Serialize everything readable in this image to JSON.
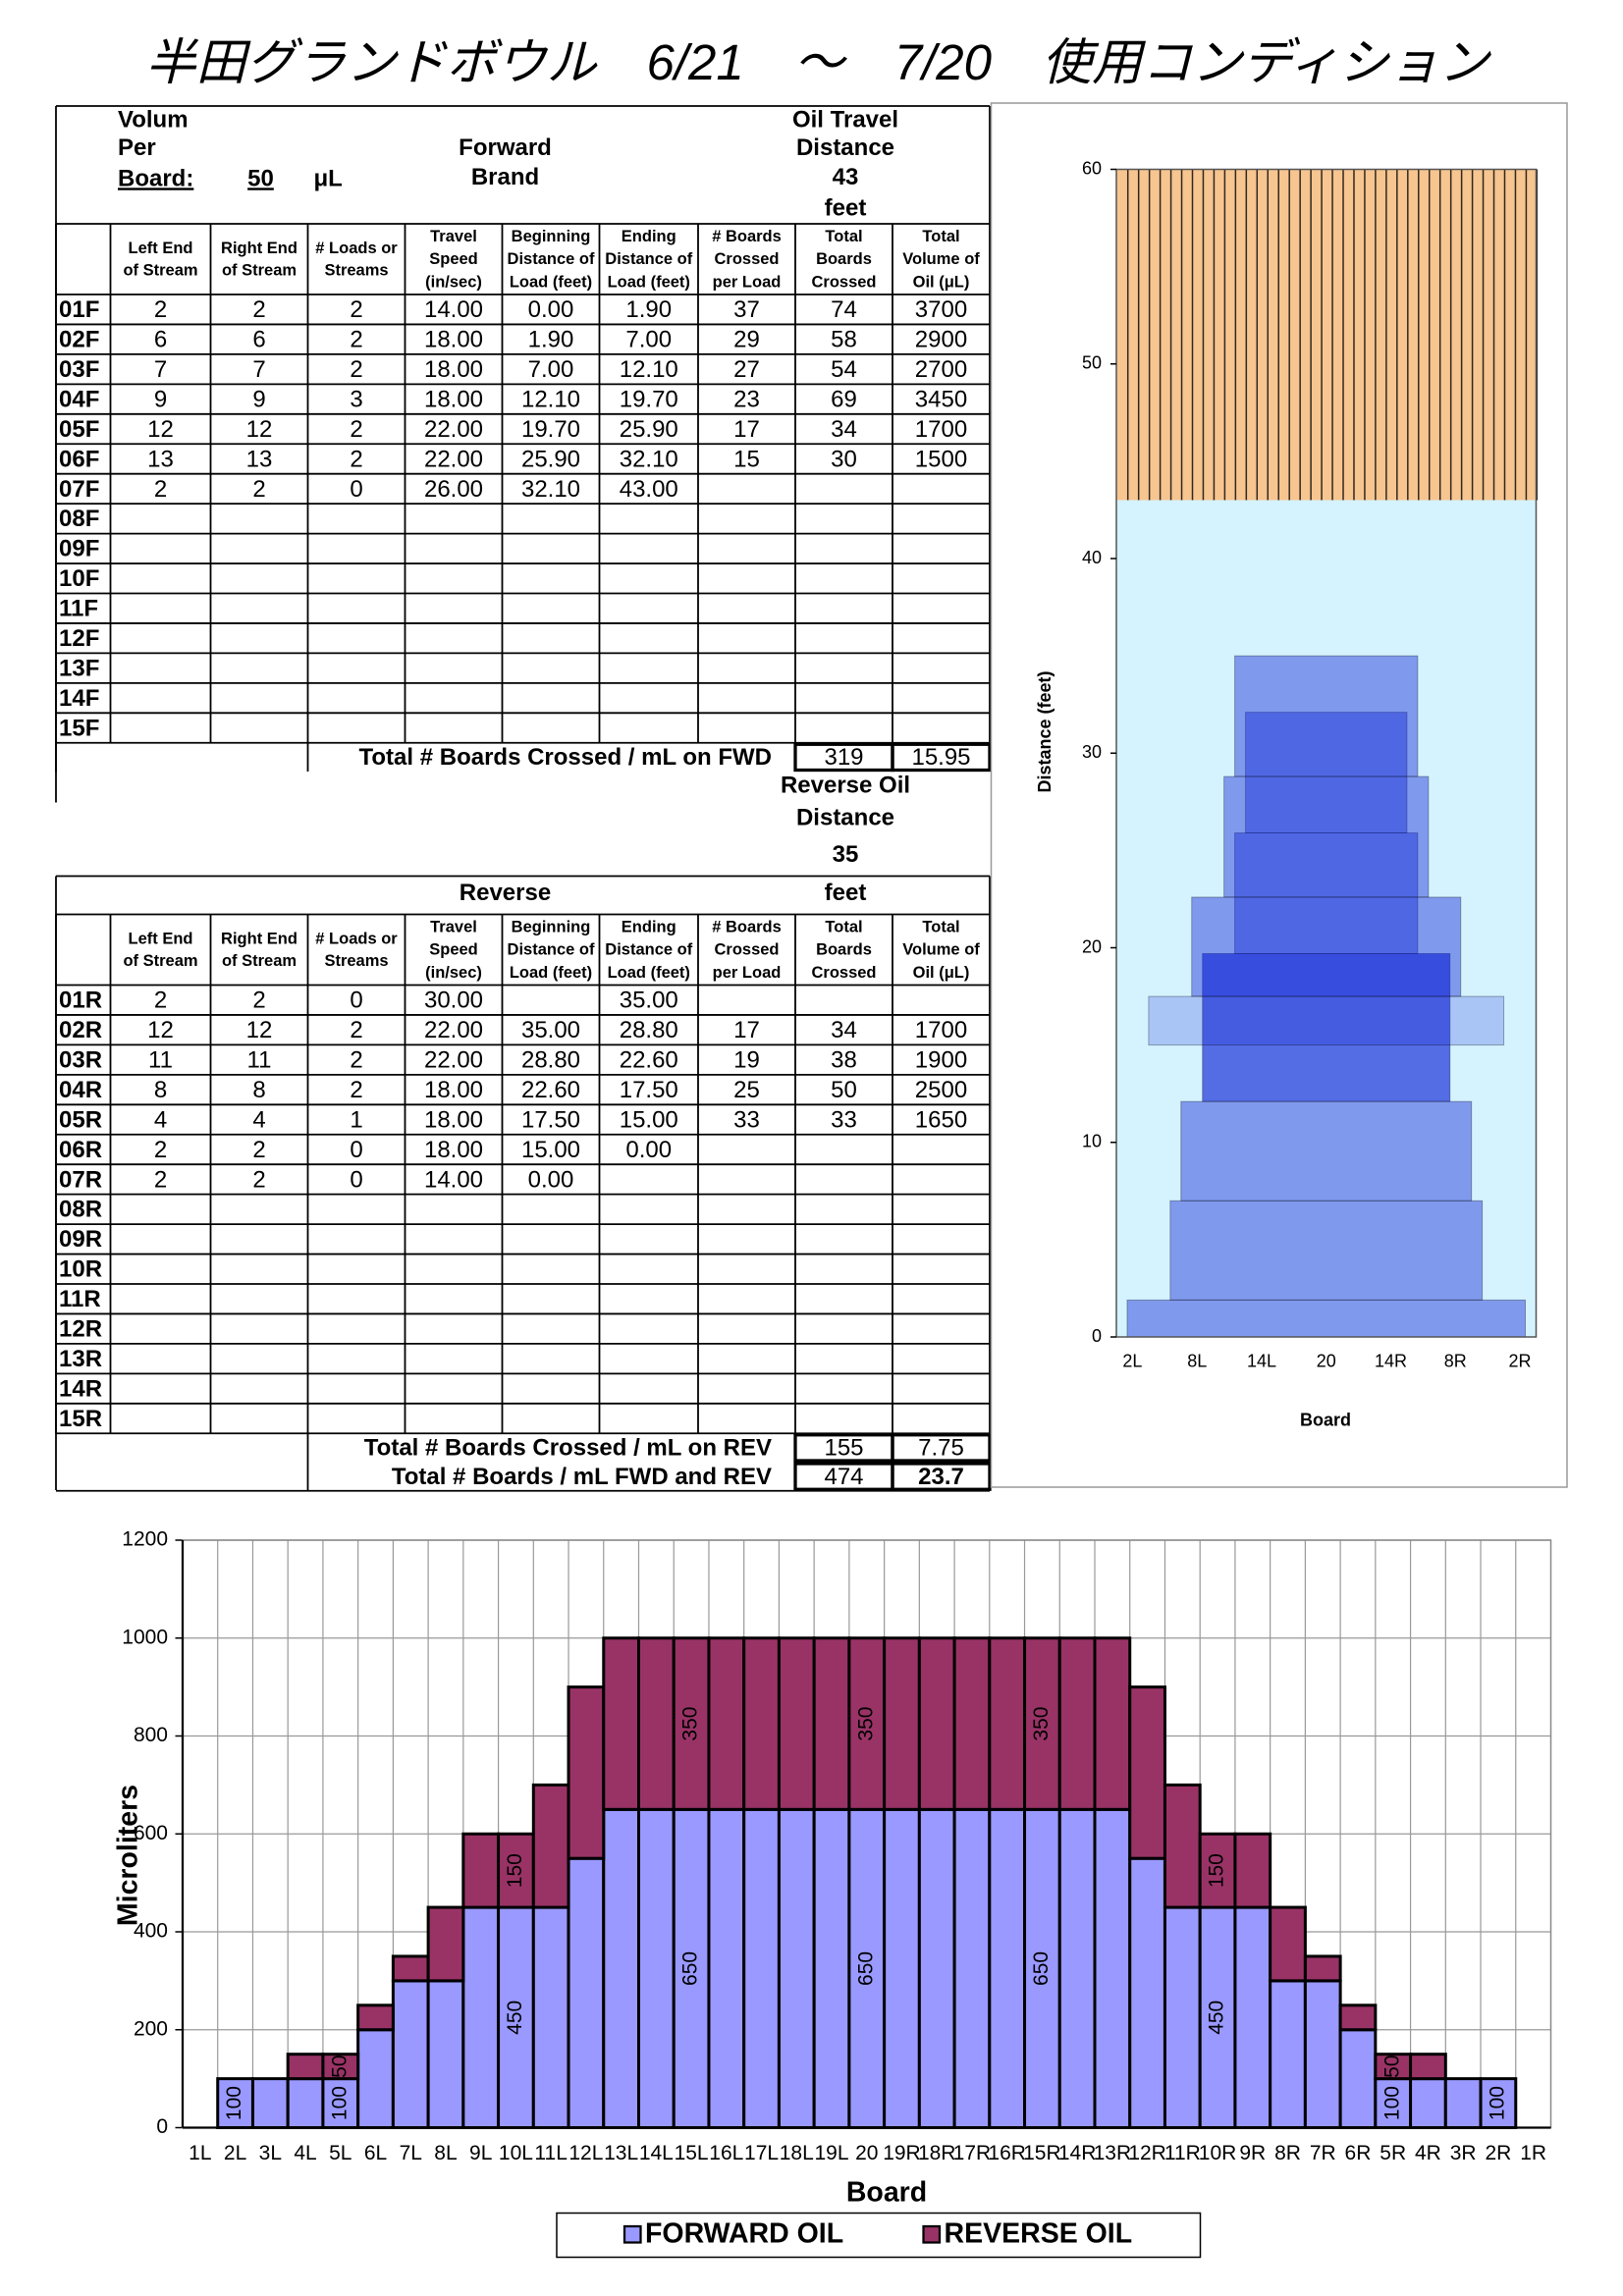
{
  "title": "半田グランドボウル　6/21　～　7/20　使用コンディション",
  "header": {
    "volume": [
      "Volum",
      "Per",
      "Board:"
    ],
    "volume_value": "50",
    "volume_unit": "μL",
    "forward": "Forward",
    "brand": "Brand",
    "oil_travel": [
      "Oil Travel",
      "Distance"
    ],
    "distance": "43",
    "distance_unit": "feet"
  },
  "columns": [
    [
      "Left   End",
      "of Stream"
    ],
    [
      "Right End",
      "of Stream"
    ],
    [
      "# Loads or",
      "Streams"
    ],
    [
      "Travel",
      "Speed",
      "(in/sec)"
    ],
    [
      "Beginning",
      "Distance of",
      "Load (feet)"
    ],
    [
      "Ending",
      "Distance of",
      "Load (feet)"
    ],
    [
      "# Boards",
      "Crossed",
      "per Load"
    ],
    [
      "Total",
      "Boards",
      "Crossed"
    ],
    [
      "Total",
      "Volume of",
      "Oil (μL)"
    ]
  ],
  "forward": {
    "rows": [
      {
        "label": "01F",
        "cells": [
          "2",
          "2",
          "2",
          "14.00",
          "0.00",
          "1.90",
          "37",
          "74",
          "3700"
        ]
      },
      {
        "label": "02F",
        "cells": [
          "6",
          "6",
          "2",
          "18.00",
          "1.90",
          "7.00",
          "29",
          "58",
          "2900"
        ]
      },
      {
        "label": "03F",
        "cells": [
          "7",
          "7",
          "2",
          "18.00",
          "7.00",
          "12.10",
          "27",
          "54",
          "2700"
        ]
      },
      {
        "label": "04F",
        "cells": [
          "9",
          "9",
          "3",
          "18.00",
          "12.10",
          "19.70",
          "23",
          "69",
          "3450"
        ]
      },
      {
        "label": "05F",
        "cells": [
          "12",
          "12",
          "2",
          "22.00",
          "19.70",
          "25.90",
          "17",
          "34",
          "1700"
        ]
      },
      {
        "label": "06F",
        "cells": [
          "13",
          "13",
          "2",
          "22.00",
          "25.90",
          "32.10",
          "15",
          "30",
          "1500"
        ]
      },
      {
        "label": "07F",
        "cells": [
          "2",
          "2",
          "0",
          "26.00",
          "32.10",
          "43.00",
          null,
          null,
          null
        ]
      },
      {
        "label": "08F"
      },
      {
        "label": "09F"
      },
      {
        "label": "10F"
      },
      {
        "label": "11F"
      },
      {
        "label": "12F"
      },
      {
        "label": "13F"
      },
      {
        "label": "14F"
      },
      {
        "label": "15F"
      }
    ],
    "total": {
      "label": "Total # Boards Crossed / mL on FWD",
      "boards": "319",
      "ml": "15.95"
    }
  },
  "reverse_header": {
    "lines": [
      "Reverse Oil",
      "Distance"
    ],
    "distance": "35",
    "distance_unit": "feet",
    "title": "Reverse"
  },
  "reverse": {
    "rows": [
      {
        "label": "01R",
        "cells": [
          "2",
          "2",
          "0",
          "30.00",
          null,
          "35.00",
          null,
          null,
          null
        ]
      },
      {
        "label": "02R",
        "cells": [
          "12",
          "12",
          "2",
          "22.00",
          "35.00",
          "28.80",
          "17",
          "34",
          "1700"
        ]
      },
      {
        "label": "03R",
        "cells": [
          "11",
          "11",
          "2",
          "22.00",
          "28.80",
          "22.60",
          "19",
          "38",
          "1900"
        ]
      },
      {
        "label": "04R",
        "cells": [
          "8",
          "8",
          "2",
          "18.00",
          "22.60",
          "17.50",
          "25",
          "50",
          "2500"
        ]
      },
      {
        "label": "05R",
        "cells": [
          "4",
          "4",
          "1",
          "18.00",
          "17.50",
          "15.00",
          "33",
          "33",
          "1650"
        ]
      },
      {
        "label": "06R",
        "cells": [
          "2",
          "2",
          "0",
          "18.00",
          "15.00",
          "0.00",
          null,
          null,
          null
        ]
      },
      {
        "label": "07R",
        "cells": [
          "2",
          "2",
          "0",
          "14.00",
          "0.00",
          null,
          null,
          null,
          null
        ]
      },
      {
        "label": "08R"
      },
      {
        "label": "09R"
      },
      {
        "label": "10R"
      },
      {
        "label": "11R"
      },
      {
        "label": "12R"
      },
      {
        "label": "13R"
      },
      {
        "label": "14R"
      },
      {
        "label": "15R"
      }
    ],
    "total": {
      "label": "Total # Boards Crossed / mL on REV",
      "boards": "155",
      "ml": "7.75"
    }
  },
  "grand_total": {
    "label": "Total # Boards / mL FWD and REV",
    "boards": "474",
    "ml": "23.7"
  },
  "chart_data": [
    {
      "type": "oil-pattern",
      "ylabel": "Distance (feet)",
      "xlabel": "Board",
      "categories": [
        null,
        "2L",
        null,
        null,
        null,
        null,
        null,
        "8L",
        null,
        null,
        null,
        null,
        null,
        "14L",
        null,
        null,
        null,
        null,
        null,
        "20",
        null,
        null,
        null,
        null,
        null,
        "14R",
        null,
        null,
        null,
        null,
        null,
        "8R",
        null,
        null,
        null,
        null,
        null,
        "2R",
        null
      ],
      "ylim": [
        0,
        60
      ],
      "yticks": [
        0,
        10,
        20,
        30,
        40,
        50,
        60
      ],
      "dry_color": "#f6c590",
      "lane_color": "#d4f3ff",
      "oil_color": "#1226d6"
    },
    {
      "type": "stacked-bar",
      "ylabel": "Microliters",
      "xlabel": "Board",
      "categories": [
        "1L",
        "2L",
        "3L",
        "4L",
        "5L",
        "6L",
        "7L",
        "8L",
        "9L",
        "10L",
        "11L",
        "12L",
        "13L",
        "14L",
        "15L",
        "16L",
        "17L",
        "18L",
        "19L",
        "20",
        "19R",
        "18R",
        "17R",
        "16R",
        "15R",
        "14R",
        "13R",
        "12R",
        "11R",
        "10R",
        "9R",
        "8R",
        "7R",
        "6R",
        "5R",
        "4R",
        "3R",
        "2R",
        "1R"
      ],
      "ylim": [
        0,
        1200
      ],
      "yticks": [
        0,
        200,
        400,
        600,
        800,
        1000,
        1200
      ],
      "grid": true,
      "legend": "bottom",
      "series": [
        {
          "name": "FORWARD OIL",
          "color": "#9999ff",
          "values": [
            0,
            100,
            100,
            100,
            100,
            200,
            300,
            300,
            450,
            450,
            450,
            550,
            650,
            650,
            650,
            650,
            650,
            650,
            650,
            650,
            650,
            650,
            650,
            650,
            650,
            650,
            650,
            550,
            450,
            450,
            450,
            300,
            300,
            200,
            100,
            100,
            100,
            100,
            0
          ],
          "value_labels": [
            null,
            "100",
            null,
            null,
            "100",
            null,
            null,
            null,
            null,
            "450",
            null,
            null,
            null,
            null,
            "650",
            null,
            null,
            null,
            null,
            "650",
            null,
            null,
            null,
            null,
            "650",
            null,
            null,
            null,
            null,
            "450",
            null,
            null,
            null,
            null,
            "100",
            null,
            null,
            "100",
            null
          ]
        },
        {
          "name": "REVERSE OIL",
          "color": "#993366",
          "values": [
            0,
            0,
            0,
            50,
            50,
            50,
            50,
            150,
            150,
            150,
            250,
            350,
            350,
            350,
            350,
            350,
            350,
            350,
            350,
            350,
            350,
            350,
            350,
            350,
            350,
            350,
            350,
            350,
            250,
            150,
            150,
            150,
            50,
            50,
            50,
            50,
            0,
            0,
            0
          ],
          "value_labels": [
            null,
            null,
            null,
            null,
            "50",
            null,
            null,
            null,
            null,
            "150",
            null,
            null,
            null,
            null,
            "350",
            null,
            null,
            null,
            null,
            "350",
            null,
            null,
            null,
            null,
            "350",
            null,
            null,
            null,
            null,
            "150",
            null,
            null,
            null,
            null,
            "50",
            null,
            null,
            null,
            null
          ]
        }
      ]
    }
  ]
}
